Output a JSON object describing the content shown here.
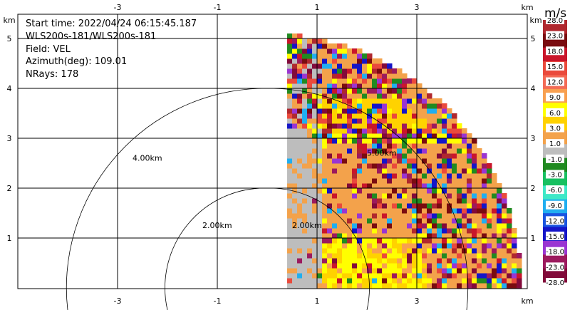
{
  "info": {
    "start_time": "Start time: 2022/04/24 06:15:45.187",
    "instrument": "WLS200s-181/WLS200s-181",
    "field": "Field: VEL",
    "azimuth": "Azimuth(deg): 109.01",
    "nrays": "NRays: 178"
  },
  "chart_data": {
    "type": "heatmap",
    "title": "",
    "x_unit_label": "km",
    "y_unit_label": "km",
    "x_range": [
      -4.0,
      4.2
    ],
    "y_range": [
      0,
      5.5
    ],
    "x_ticks": [
      "-3",
      "-1",
      "1",
      "3"
    ],
    "y_ticks": [
      "1",
      "2",
      "3",
      "4",
      "5"
    ],
    "x_tick_values": [
      -3,
      -1,
      1,
      3
    ],
    "y_tick_values": [
      1,
      2,
      3,
      4,
      5
    ],
    "grid": true,
    "range_rings": [
      {
        "label": "4.00km",
        "radius_km": 4.0
      },
      {
        "label": "2.00km",
        "radius_km": 2.0
      }
    ],
    "range_labels_right": [
      "2.00km",
      "5.00km"
    ],
    "sector": {
      "x_start_km": 0.4,
      "max_radius_km": 5.1
    },
    "colorbar": {
      "unit": "m/s",
      "labels": [
        "28.0",
        "23.0",
        "18.0",
        "15.0",
        "12.0",
        "9.0",
        "6.0",
        "3.0",
        "1.0",
        "-1.0",
        "-3.0",
        "-6.0",
        "-9.0",
        "-12.0",
        "-15.0",
        "-18.0",
        "-23.0",
        "-28.0"
      ],
      "colors": [
        "#b0282e",
        "#7a0c10",
        "#c9162b",
        "#ea4a3c",
        "#f36b56",
        "#f8a050",
        "#ffff00",
        "#ffd200",
        "#f3a24b",
        "#bdbdbd",
        "#218a21",
        "#18c060",
        "#3fe8c7",
        "#20aef0",
        "#1a55e0",
        "#1515c8",
        "#9a35d2",
        "#9c1a5e",
        "#820a3a"
      ]
    }
  }
}
